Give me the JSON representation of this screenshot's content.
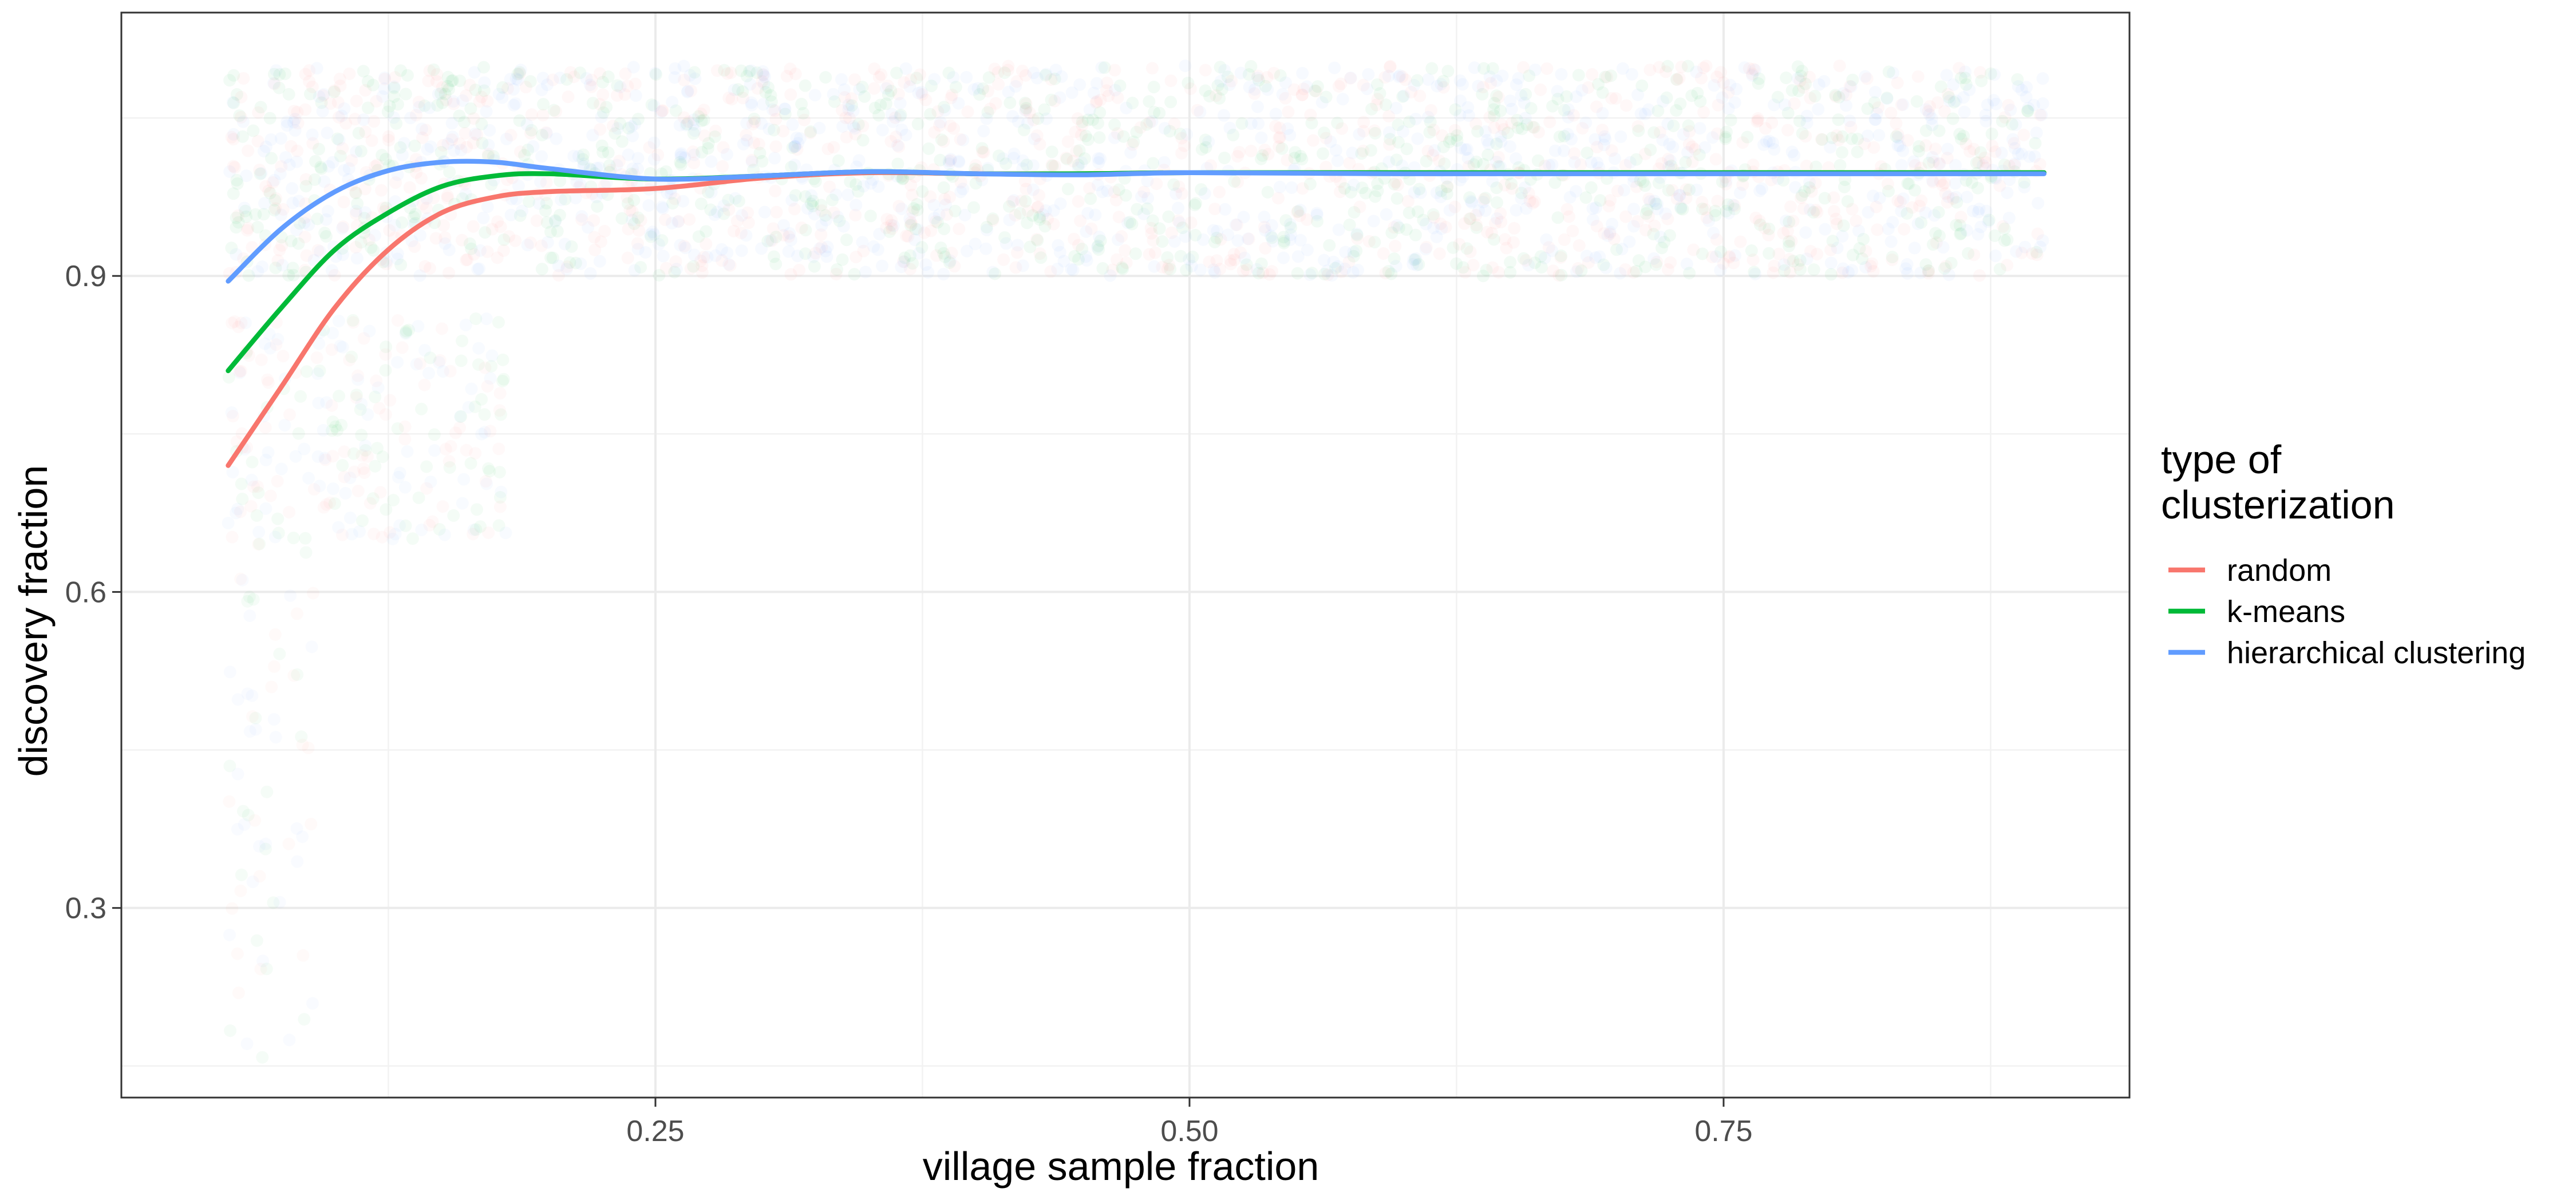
{
  "chart_data": {
    "type": "line",
    "xlabel": "village sample fraction",
    "ylabel": "discovery fraction",
    "xlim": [
      0.0,
      0.94
    ],
    "ylim": [
      0.12,
      1.15
    ],
    "x_ticks": [
      0.25,
      0.5,
      0.75
    ],
    "x_tick_labels": [
      "0.25",
      "0.50",
      "0.75"
    ],
    "y_ticks": [
      0.3,
      0.6,
      0.9
    ],
    "y_tick_labels": [
      "0.3",
      "0.6",
      "0.9"
    ],
    "grid": true,
    "legend": {
      "title_lines": [
        "type of",
        "clusterization"
      ],
      "placement": "right"
    },
    "series": [
      {
        "name": "random",
        "color": "#F8766D",
        "x": [
          0.05,
          0.075,
          0.1,
          0.125,
          0.15,
          0.175,
          0.2,
          0.25,
          0.3,
          0.35,
          0.4,
          0.45,
          0.5,
          0.6,
          0.7,
          0.8,
          0.9
        ],
        "y": [
          0.72,
          0.795,
          0.87,
          0.925,
          0.96,
          0.975,
          0.98,
          0.983,
          0.993,
          0.998,
          0.997,
          0.997,
          0.998,
          0.998,
          0.998,
          0.998,
          0.998
        ]
      },
      {
        "name": "k-means",
        "color": "#00BA38",
        "x": [
          0.05,
          0.075,
          0.1,
          0.125,
          0.15,
          0.175,
          0.2,
          0.25,
          0.3,
          0.35,
          0.4,
          0.45,
          0.5,
          0.6,
          0.7,
          0.8,
          0.9
        ],
        "y": [
          0.81,
          0.87,
          0.925,
          0.96,
          0.985,
          0.995,
          0.997,
          0.992,
          0.995,
          0.999,
          0.997,
          0.997,
          0.998,
          0.998,
          0.998,
          0.998,
          0.998
        ]
      },
      {
        "name": "hierarchical clustering",
        "color": "#619CFF",
        "x": [
          0.05,
          0.075,
          0.1,
          0.125,
          0.15,
          0.175,
          0.2,
          0.25,
          0.3,
          0.35,
          0.4,
          0.45,
          0.5,
          0.6,
          0.7,
          0.8,
          0.9
        ],
        "y": [
          0.895,
          0.945,
          0.98,
          1.0,
          1.008,
          1.008,
          1.002,
          0.992,
          0.995,
          0.999,
          0.997,
          0.996,
          0.998,
          0.997,
          0.997,
          0.997,
          0.997
        ]
      }
    ],
    "scatter_points": {
      "colors": [
        "#F8766D",
        "#00BA38",
        "#619CFF"
      ],
      "x_range": [
        0.05,
        0.9
      ],
      "dense_y_range": [
        0.9,
        1.1
      ],
      "low_cluster_y_range": [
        0.65,
        0.86
      ],
      "low_cluster_x_range": [
        0.05,
        0.18
      ],
      "sparse_y_range": [
        0.15,
        0.65
      ],
      "sparse_x_range": [
        0.05,
        0.09
      ]
    }
  }
}
